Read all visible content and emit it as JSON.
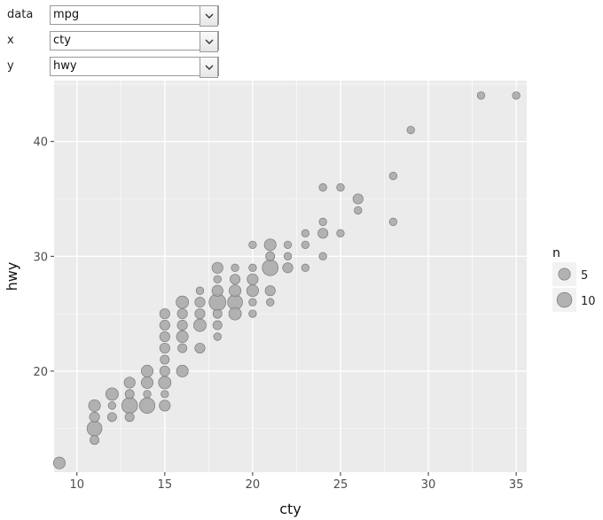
{
  "controls": [
    {
      "label": "data",
      "value": "mpg"
    },
    {
      "label": "x",
      "value": "cty"
    },
    {
      "label": "y",
      "value": "hwy"
    }
  ],
  "colors": {
    "panel": "#ebebeb",
    "grid_major": "#ffffff",
    "point_fill": "#a9a9a9",
    "point_stroke": "#7a7a7a"
  },
  "icons": {
    "dropdown": "chevron-down-icon"
  },
  "chart_data": {
    "type": "scatter",
    "xlabel": "cty",
    "ylabel": "hwy",
    "xlim": [
      8.7,
      35.6
    ],
    "ylim": [
      11.2,
      45.3
    ],
    "xticks": [
      10,
      15,
      20,
      25,
      30,
      35
    ],
    "yticks": [
      20,
      30,
      40
    ],
    "grid": true,
    "legend": {
      "title": "n",
      "position": "right",
      "entries": [
        {
          "label": "5",
          "n": 5
        },
        {
          "label": "10",
          "n": 10
        }
      ]
    },
    "points": [
      {
        "x": 9,
        "y": 12,
        "n": 5
      },
      {
        "x": 11,
        "y": 14,
        "n": 2
      },
      {
        "x": 11,
        "y": 15,
        "n": 10
      },
      {
        "x": 11,
        "y": 16,
        "n": 3
      },
      {
        "x": 11,
        "y": 17,
        "n": 5
      },
      {
        "x": 12,
        "y": 16,
        "n": 2
      },
      {
        "x": 12,
        "y": 17,
        "n": 1
      },
      {
        "x": 12,
        "y": 18,
        "n": 6
      },
      {
        "x": 13,
        "y": 16,
        "n": 2
      },
      {
        "x": 13,
        "y": 17,
        "n": 12
      },
      {
        "x": 13,
        "y": 18,
        "n": 2
      },
      {
        "x": 13,
        "y": 19,
        "n": 4
      },
      {
        "x": 14,
        "y": 17,
        "n": 11
      },
      {
        "x": 14,
        "y": 18,
        "n": 1
      },
      {
        "x": 14,
        "y": 19,
        "n": 5
      },
      {
        "x": 14,
        "y": 20,
        "n": 5
      },
      {
        "x": 15,
        "y": 17,
        "n": 4
      },
      {
        "x": 15,
        "y": 18,
        "n": 1
      },
      {
        "x": 15,
        "y": 19,
        "n": 6
      },
      {
        "x": 15,
        "y": 20,
        "n": 3
      },
      {
        "x": 15,
        "y": 21,
        "n": 2
      },
      {
        "x": 15,
        "y": 22,
        "n": 3
      },
      {
        "x": 15,
        "y": 23,
        "n": 3
      },
      {
        "x": 15,
        "y": 24,
        "n": 3
      },
      {
        "x": 15,
        "y": 25,
        "n": 3
      },
      {
        "x": 16,
        "y": 20,
        "n": 5
      },
      {
        "x": 16,
        "y": 22,
        "n": 2
      },
      {
        "x": 16,
        "y": 23,
        "n": 5
      },
      {
        "x": 16,
        "y": 24,
        "n": 3
      },
      {
        "x": 16,
        "y": 25,
        "n": 3
      },
      {
        "x": 16,
        "y": 26,
        "n": 6
      },
      {
        "x": 17,
        "y": 22,
        "n": 3
      },
      {
        "x": 17,
        "y": 24,
        "n": 6
      },
      {
        "x": 17,
        "y": 25,
        "n": 3
      },
      {
        "x": 17,
        "y": 26,
        "n": 3
      },
      {
        "x": 17,
        "y": 27,
        "n": 1
      },
      {
        "x": 18,
        "y": 23,
        "n": 1
      },
      {
        "x": 18,
        "y": 24,
        "n": 2
      },
      {
        "x": 18,
        "y": 25,
        "n": 2
      },
      {
        "x": 18,
        "y": 26,
        "n": 14
      },
      {
        "x": 18,
        "y": 27,
        "n": 4
      },
      {
        "x": 18,
        "y": 28,
        "n": 1
      },
      {
        "x": 18,
        "y": 29,
        "n": 4
      },
      {
        "x": 19,
        "y": 25,
        "n": 6
      },
      {
        "x": 19,
        "y": 26,
        "n": 10
      },
      {
        "x": 19,
        "y": 27,
        "n": 5
      },
      {
        "x": 19,
        "y": 28,
        "n": 3
      },
      {
        "x": 19,
        "y": 29,
        "n": 1
      },
      {
        "x": 20,
        "y": 25,
        "n": 1
      },
      {
        "x": 20,
        "y": 26,
        "n": 1
      },
      {
        "x": 20,
        "y": 27,
        "n": 5
      },
      {
        "x": 20,
        "y": 28,
        "n": 4
      },
      {
        "x": 20,
        "y": 29,
        "n": 1
      },
      {
        "x": 20,
        "y": 31,
        "n": 1
      },
      {
        "x": 21,
        "y": 26,
        "n": 1
      },
      {
        "x": 21,
        "y": 27,
        "n": 3
      },
      {
        "x": 21,
        "y": 29,
        "n": 12
      },
      {
        "x": 21,
        "y": 30,
        "n": 2
      },
      {
        "x": 21,
        "y": 31,
        "n": 5
      },
      {
        "x": 22,
        "y": 29,
        "n": 3
      },
      {
        "x": 22,
        "y": 30,
        "n": 1
      },
      {
        "x": 22,
        "y": 31,
        "n": 1
      },
      {
        "x": 23,
        "y": 29,
        "n": 1
      },
      {
        "x": 23,
        "y": 31,
        "n": 1
      },
      {
        "x": 23,
        "y": 32,
        "n": 1
      },
      {
        "x": 24,
        "y": 30,
        "n": 1
      },
      {
        "x": 24,
        "y": 32,
        "n": 3
      },
      {
        "x": 24,
        "y": 33,
        "n": 1
      },
      {
        "x": 24,
        "y": 36,
        "n": 1
      },
      {
        "x": 25,
        "y": 32,
        "n": 1
      },
      {
        "x": 25,
        "y": 36,
        "n": 1
      },
      {
        "x": 26,
        "y": 34,
        "n": 1
      },
      {
        "x": 26,
        "y": 35,
        "n": 3
      },
      {
        "x": 28,
        "y": 33,
        "n": 1
      },
      {
        "x": 28,
        "y": 37,
        "n": 1
      },
      {
        "x": 29,
        "y": 41,
        "n": 1
      },
      {
        "x": 33,
        "y": 44,
        "n": 1
      },
      {
        "x": 35,
        "y": 44,
        "n": 1
      }
    ]
  }
}
